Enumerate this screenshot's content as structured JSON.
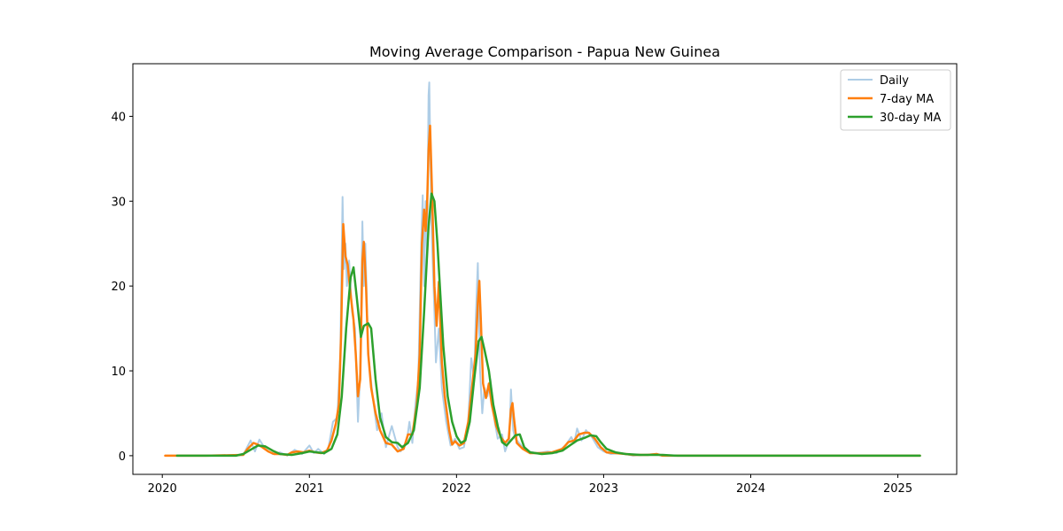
{
  "chart_data": {
    "type": "line",
    "title": "Moving Average Comparison - Papua New Guinea",
    "xlabel": "",
    "ylabel": "",
    "xlim": [
      2019.8,
      2025.4
    ],
    "ylim": [
      -2.2,
      46.2
    ],
    "x_ticks": [
      {
        "value": 2020,
        "label": "2020"
      },
      {
        "value": 2021,
        "label": "2021"
      },
      {
        "value": 2022,
        "label": "2022"
      },
      {
        "value": 2023,
        "label": "2023"
      },
      {
        "value": 2024,
        "label": "2024"
      },
      {
        "value": 2025,
        "label": "2025"
      }
    ],
    "y_ticks": [
      {
        "value": 0,
        "label": "0"
      },
      {
        "value": 10,
        "label": "10"
      },
      {
        "value": 20,
        "label": "20"
      },
      {
        "value": 30,
        "label": "30"
      },
      {
        "value": 40,
        "label": "40"
      }
    ],
    "grid": false,
    "legend_position": "top-right",
    "series": [
      {
        "name": "Daily",
        "color": "#aecde6",
        "stroke_width": 2,
        "points": [
          [
            2020.02,
            0
          ],
          [
            2020.3,
            0
          ],
          [
            2020.55,
            0.1
          ],
          [
            2020.6,
            1.8
          ],
          [
            2020.63,
            0.5
          ],
          [
            2020.66,
            1.9
          ],
          [
            2020.7,
            0.8
          ],
          [
            2020.75,
            0.2
          ],
          [
            2020.8,
            0.4
          ],
          [
            2020.85,
            0
          ],
          [
            2020.9,
            0.7
          ],
          [
            2020.95,
            0.2
          ],
          [
            2021.0,
            1.2
          ],
          [
            2021.03,
            0.3
          ],
          [
            2021.06,
            0.8
          ],
          [
            2021.1,
            0.2
          ],
          [
            2021.13,
            1.0
          ],
          [
            2021.16,
            4.0
          ],
          [
            2021.19,
            4.5
          ],
          [
            2021.21,
            12
          ],
          [
            2021.225,
            30.5
          ],
          [
            2021.235,
            22
          ],
          [
            2021.245,
            25
          ],
          [
            2021.255,
            20
          ],
          [
            2021.27,
            23
          ],
          [
            2021.29,
            17
          ],
          [
            2021.31,
            15
          ],
          [
            2021.33,
            4
          ],
          [
            2021.345,
            10
          ],
          [
            2021.36,
            27.6
          ],
          [
            2021.37,
            20
          ],
          [
            2021.38,
            25
          ],
          [
            2021.4,
            12
          ],
          [
            2021.43,
            7
          ],
          [
            2021.46,
            3
          ],
          [
            2021.49,
            5
          ],
          [
            2021.52,
            1
          ],
          [
            2021.56,
            3.5
          ],
          [
            2021.6,
            1
          ],
          [
            2021.62,
            0.5
          ],
          [
            2021.66,
            1.5
          ],
          [
            2021.68,
            4
          ],
          [
            2021.7,
            1.5
          ],
          [
            2021.72,
            6
          ],
          [
            2021.74,
            9
          ],
          [
            2021.76,
            25
          ],
          [
            2021.77,
            30.7
          ],
          [
            2021.78,
            20
          ],
          [
            2021.79,
            30
          ],
          [
            2021.8,
            24
          ],
          [
            2021.81,
            42.5
          ],
          [
            2021.815,
            44
          ],
          [
            2021.83,
            27
          ],
          [
            2021.85,
            17
          ],
          [
            2021.86,
            11
          ],
          [
            2021.88,
            15
          ],
          [
            2021.9,
            8
          ],
          [
            2021.93,
            4
          ],
          [
            2021.96,
            1.2
          ],
          [
            2021.99,
            2
          ],
          [
            2022.02,
            0.8
          ],
          [
            2022.05,
            1
          ],
          [
            2022.08,
            4
          ],
          [
            2022.1,
            11.5
          ],
          [
            2022.12,
            9
          ],
          [
            2022.13,
            15.5
          ],
          [
            2022.145,
            22.7
          ],
          [
            2022.16,
            10
          ],
          [
            2022.175,
            5
          ],
          [
            2022.19,
            8
          ],
          [
            2022.21,
            7
          ],
          [
            2022.23,
            9
          ],
          [
            2022.26,
            4
          ],
          [
            2022.28,
            2
          ],
          [
            2022.31,
            2.5
          ],
          [
            2022.33,
            0.5
          ],
          [
            2022.36,
            2
          ],
          [
            2022.37,
            7.8
          ],
          [
            2022.385,
            3
          ],
          [
            2022.4,
            2
          ],
          [
            2022.44,
            1.2
          ],
          [
            2022.48,
            0.5
          ],
          [
            2022.55,
            0.3
          ],
          [
            2022.62,
            0.5
          ],
          [
            2022.68,
            0.3
          ],
          [
            2022.74,
            1.2
          ],
          [
            2022.78,
            2.2
          ],
          [
            2022.8,
            1.5
          ],
          [
            2022.82,
            3.2
          ],
          [
            2022.85,
            1.8
          ],
          [
            2022.88,
            3.0
          ],
          [
            2022.92,
            2.2
          ],
          [
            2022.96,
            1
          ],
          [
            2023.0,
            0.5
          ],
          [
            2023.05,
            0.2
          ],
          [
            2023.1,
            0.3
          ],
          [
            2023.15,
            0.2
          ],
          [
            2023.2,
            0
          ],
          [
            2023.35,
            0.2
          ],
          [
            2023.4,
            0
          ],
          [
            2025.15,
            0
          ]
        ]
      },
      {
        "name": "7-day MA",
        "color": "#ff7f0e",
        "stroke_width": 2.5,
        "points": [
          [
            2020.02,
            0
          ],
          [
            2020.3,
            0
          ],
          [
            2020.55,
            0.1
          ],
          [
            2020.58,
            0.8
          ],
          [
            2020.62,
            1.5
          ],
          [
            2020.65,
            1.3
          ],
          [
            2020.68,
            1.0
          ],
          [
            2020.72,
            0.5
          ],
          [
            2020.76,
            0.2
          ],
          [
            2020.8,
            0.2
          ],
          [
            2020.85,
            0.1
          ],
          [
            2020.88,
            0.4
          ],
          [
            2020.92,
            0.5
          ],
          [
            2020.96,
            0.4
          ],
          [
            2021.0,
            0.6
          ],
          [
            2021.04,
            0.4
          ],
          [
            2021.08,
            0.3
          ],
          [
            2021.12,
            0.6
          ],
          [
            2021.15,
            1.8
          ],
          [
            2021.18,
            3.8
          ],
          [
            2021.2,
            6
          ],
          [
            2021.215,
            14
          ],
          [
            2021.23,
            27.3
          ],
          [
            2021.245,
            23.5
          ],
          [
            2021.26,
            22.5
          ],
          [
            2021.28,
            19
          ],
          [
            2021.3,
            16
          ],
          [
            2021.315,
            12
          ],
          [
            2021.33,
            7
          ],
          [
            2021.345,
            9
          ],
          [
            2021.36,
            23
          ],
          [
            2021.37,
            25.2
          ],
          [
            2021.385,
            20
          ],
          [
            2021.4,
            12
          ],
          [
            2021.42,
            8
          ],
          [
            2021.45,
            5
          ],
          [
            2021.48,
            3
          ],
          [
            2021.52,
            1.5
          ],
          [
            2021.56,
            1.3
          ],
          [
            2021.6,
            0.5
          ],
          [
            2021.64,
            0.8
          ],
          [
            2021.67,
            2.5
          ],
          [
            2021.7,
            2.5
          ],
          [
            2021.73,
            6
          ],
          [
            2021.75,
            12
          ],
          [
            2021.765,
            25
          ],
          [
            2021.78,
            29
          ],
          [
            2021.79,
            26.5
          ],
          [
            2021.8,
            29.5
          ],
          [
            2021.81,
            36
          ],
          [
            2021.82,
            38.9
          ],
          [
            2021.835,
            30
          ],
          [
            2021.85,
            20
          ],
          [
            2021.865,
            15.3
          ],
          [
            2021.88,
            20.5
          ],
          [
            2021.9,
            11
          ],
          [
            2021.92,
            7
          ],
          [
            2021.95,
            3
          ],
          [
            2021.97,
            1.3
          ],
          [
            2021.99,
            1.7
          ],
          [
            2022.02,
            1.2
          ],
          [
            2022.05,
            1.5
          ],
          [
            2022.08,
            4
          ],
          [
            2022.11,
            8.8
          ],
          [
            2022.13,
            12
          ],
          [
            2022.145,
            18
          ],
          [
            2022.155,
            20.6
          ],
          [
            2022.165,
            16
          ],
          [
            2022.18,
            8.5
          ],
          [
            2022.2,
            6.8
          ],
          [
            2022.22,
            8.5
          ],
          [
            2022.24,
            6
          ],
          [
            2022.27,
            3.5
          ],
          [
            2022.3,
            2.2
          ],
          [
            2022.33,
            1.5
          ],
          [
            2022.355,
            2
          ],
          [
            2022.37,
            5.5
          ],
          [
            2022.38,
            6.2
          ],
          [
            2022.39,
            4.5
          ],
          [
            2022.41,
            1.5
          ],
          [
            2022.45,
            0.8
          ],
          [
            2022.5,
            0.3
          ],
          [
            2022.58,
            0.3
          ],
          [
            2022.65,
            0.4
          ],
          [
            2022.72,
            0.8
          ],
          [
            2022.76,
            1.6
          ],
          [
            2022.8,
            1.8
          ],
          [
            2022.83,
            2.5
          ],
          [
            2022.87,
            2.7
          ],
          [
            2022.9,
            2.7
          ],
          [
            2022.94,
            2
          ],
          [
            2022.98,
            1
          ],
          [
            2023.02,
            0.4
          ],
          [
            2023.08,
            0.3
          ],
          [
            2023.15,
            0.2
          ],
          [
            2023.2,
            0.1
          ],
          [
            2023.3,
            0.1
          ],
          [
            2023.36,
            0.2
          ],
          [
            2023.4,
            0
          ],
          [
            2025.15,
            0
          ]
        ]
      },
      {
        "name": "30-day MA",
        "color": "#2ca02c",
        "stroke_width": 2.5,
        "points": [
          [
            2020.1,
            0
          ],
          [
            2020.5,
            0
          ],
          [
            2020.55,
            0.2
          ],
          [
            2020.6,
            0.7
          ],
          [
            2020.65,
            1.2
          ],
          [
            2020.7,
            1.1
          ],
          [
            2020.75,
            0.6
          ],
          [
            2020.8,
            0.2
          ],
          [
            2020.88,
            0.1
          ],
          [
            2020.95,
            0.3
          ],
          [
            2021.0,
            0.5
          ],
          [
            2021.05,
            0.4
          ],
          [
            2021.1,
            0.3
          ],
          [
            2021.15,
            0.8
          ],
          [
            2021.19,
            2.5
          ],
          [
            2021.22,
            7
          ],
          [
            2021.25,
            15
          ],
          [
            2021.28,
            21
          ],
          [
            2021.3,
            22.2
          ],
          [
            2021.32,
            19
          ],
          [
            2021.35,
            14
          ],
          [
            2021.37,
            15.3
          ],
          [
            2021.4,
            15.6
          ],
          [
            2021.42,
            15
          ],
          [
            2021.45,
            9
          ],
          [
            2021.48,
            4.5
          ],
          [
            2021.52,
            2.2
          ],
          [
            2021.56,
            1.6
          ],
          [
            2021.6,
            1.5
          ],
          [
            2021.63,
            1.0
          ],
          [
            2021.67,
            1.5
          ],
          [
            2021.71,
            3
          ],
          [
            2021.75,
            8
          ],
          [
            2021.78,
            17
          ],
          [
            2021.81,
            27
          ],
          [
            2021.83,
            30.9
          ],
          [
            2021.85,
            30
          ],
          [
            2021.87,
            25
          ],
          [
            2021.89,
            19
          ],
          [
            2021.91,
            13
          ],
          [
            2021.94,
            7
          ],
          [
            2021.97,
            4
          ],
          [
            2022.0,
            2.3
          ],
          [
            2022.03,
            1.5
          ],
          [
            2022.06,
            1.8
          ],
          [
            2022.09,
            4
          ],
          [
            2022.12,
            9
          ],
          [
            2022.15,
            13.5
          ],
          [
            2022.17,
            14
          ],
          [
            2022.19,
            12.5
          ],
          [
            2022.22,
            10
          ],
          [
            2022.25,
            6
          ],
          [
            2022.28,
            3.5
          ],
          [
            2022.31,
            1.6
          ],
          [
            2022.34,
            1.2
          ],
          [
            2022.37,
            1.8
          ],
          [
            2022.4,
            2.4
          ],
          [
            2022.43,
            2.5
          ],
          [
            2022.46,
            1
          ],
          [
            2022.5,
            0.4
          ],
          [
            2022.58,
            0.2
          ],
          [
            2022.65,
            0.3
          ],
          [
            2022.72,
            0.6
          ],
          [
            2022.77,
            1.2
          ],
          [
            2022.82,
            1.8
          ],
          [
            2022.87,
            2.1
          ],
          [
            2022.91,
            2.4
          ],
          [
            2022.95,
            2.3
          ],
          [
            2022.98,
            1.6
          ],
          [
            2023.02,
            0.8
          ],
          [
            2023.08,
            0.4
          ],
          [
            2023.15,
            0.2
          ],
          [
            2023.25,
            0.1
          ],
          [
            2023.4,
            0.1
          ],
          [
            2023.5,
            0
          ],
          [
            2025.15,
            0
          ]
        ]
      }
    ]
  }
}
